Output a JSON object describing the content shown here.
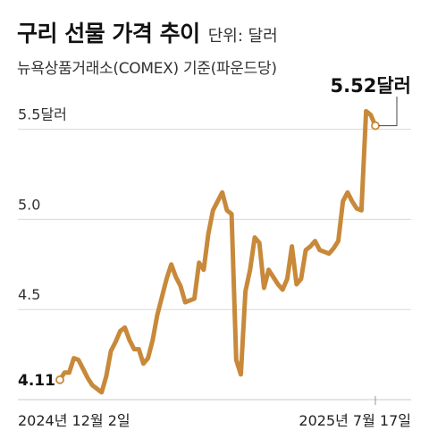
{
  "header": {
    "title": "구리 선물 가격 추이",
    "unit": "단위: 달러",
    "subtitle": "뉴욕상품거래소(COMEX) 기준(파운드당)"
  },
  "chart_data": {
    "type": "line",
    "title": "구리 선물 가격 추이",
    "unit": "단위: 달러",
    "subtitle": "뉴욕상품거래소(COMEX) 기준(파운드당)",
    "x_start_label": "2024년 12월 2일",
    "x_end_label": "2025년 7월 17일",
    "y_ticks": [
      {
        "value": 5.5,
        "label": "5.5달러"
      },
      {
        "value": 5.0,
        "label": "5.0"
      },
      {
        "value": 4.5,
        "label": "4.5"
      }
    ],
    "ylim": [
      4.0,
      5.72
    ],
    "start_label": "4.11",
    "end_label": "5.52달러",
    "grid": true,
    "line_color": "#c8893a",
    "series": [
      {
        "values": [
          4.11,
          4.15,
          4.15,
          4.23,
          4.22,
          4.17,
          4.12,
          4.08,
          4.06,
          4.04,
          4.13,
          4.27,
          4.32,
          4.38,
          4.4,
          4.33,
          4.28,
          4.28,
          4.2,
          4.23,
          4.33,
          4.47,
          4.57,
          4.67,
          4.75,
          4.68,
          4.63,
          4.54,
          4.55,
          4.56,
          4.76,
          4.72,
          4.92,
          5.05,
          5.1,
          5.15,
          5.05,
          5.03,
          4.22,
          4.14,
          4.6,
          4.72,
          4.9,
          4.87,
          4.62,
          4.72,
          4.68,
          4.64,
          4.61,
          4.67,
          4.85,
          4.64,
          4.67,
          4.83,
          4.85,
          4.88,
          4.83,
          4.82,
          4.81,
          4.84,
          4.88,
          5.1,
          5.15,
          5.1,
          5.06,
          5.05,
          5.6,
          5.58,
          5.52
        ]
      }
    ]
  }
}
